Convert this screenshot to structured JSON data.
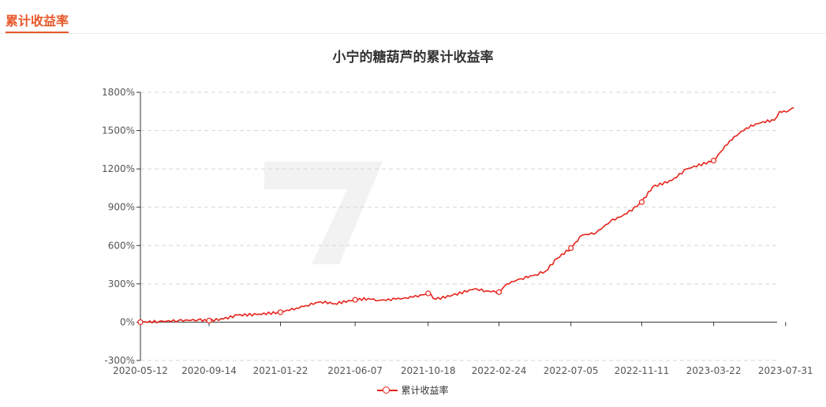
{
  "tab": {
    "title": "累计收益率"
  },
  "colors": {
    "accent": "#e8582a",
    "series": "#e6241b",
    "grid": "#d6d6d6"
  },
  "chart_data": {
    "type": "line",
    "title": "小宁的糖葫芦的累计收益率",
    "xlabel": "",
    "ylabel": "",
    "ylim": [
      -300,
      1800
    ],
    "yticks": [
      -300,
      0,
      300,
      600,
      900,
      1200,
      1500,
      1800
    ],
    "y_unit": "%",
    "x_ticks": [
      "2020-05-12",
      "2020-09-14",
      "2021-01-22",
      "2021-06-07",
      "2021-10-18",
      "2022-02-24",
      "2022-07-05",
      "2022-11-11",
      "2023-03-22",
      "2023-07-31"
    ],
    "grid": "horizontal dashed",
    "legend_position": "bottom",
    "series": [
      {
        "name": "累计收益率",
        "points": [
          [
            "2020-05-12",
            0
          ],
          [
            "2020-06-15",
            5
          ],
          [
            "2020-07-20",
            12
          ],
          [
            "2020-08-25",
            18
          ],
          [
            "2020-09-14",
            12
          ],
          [
            "2020-10-10",
            25
          ],
          [
            "2020-11-05",
            55
          ],
          [
            "2020-12-10",
            60
          ],
          [
            "2021-01-22",
            78
          ],
          [
            "2021-02-20",
            110
          ],
          [
            "2021-03-10",
            130
          ],
          [
            "2021-04-05",
            160
          ],
          [
            "2021-05-01",
            145
          ],
          [
            "2021-06-07",
            175
          ],
          [
            "2021-07-01",
            185
          ],
          [
            "2021-07-20",
            170
          ],
          [
            "2021-08-20",
            180
          ],
          [
            "2021-09-20",
            195
          ],
          [
            "2021-10-18",
            225
          ],
          [
            "2021-11-01",
            180
          ],
          [
            "2021-12-01",
            210
          ],
          [
            "2022-01-10",
            260
          ],
          [
            "2022-02-01",
            245
          ],
          [
            "2022-02-24",
            235
          ],
          [
            "2022-03-10",
            300
          ],
          [
            "2022-04-05",
            340
          ],
          [
            "2022-05-01",
            370
          ],
          [
            "2022-05-20",
            400
          ],
          [
            "2022-06-10",
            500
          ],
          [
            "2022-07-05",
            580
          ],
          [
            "2022-07-25",
            680
          ],
          [
            "2022-08-20",
            700
          ],
          [
            "2022-09-15",
            790
          ],
          [
            "2022-10-15",
            850
          ],
          [
            "2022-11-11",
            940
          ],
          [
            "2022-12-01",
            1060
          ],
          [
            "2023-01-05",
            1110
          ],
          [
            "2023-02-01",
            1200
          ],
          [
            "2023-03-22",
            1265
          ],
          [
            "2023-04-20",
            1420
          ],
          [
            "2023-05-20",
            1520
          ],
          [
            "2023-06-20",
            1570
          ],
          [
            "2023-07-10",
            1580
          ],
          [
            "2023-07-20",
            1650
          ],
          [
            "2023-08-01",
            1645
          ],
          [
            "2023-08-15",
            1680
          ]
        ],
        "marked_points": [
          "2020-05-12",
          "2020-09-14",
          "2021-01-22",
          "2021-06-07",
          "2021-10-18",
          "2022-02-24",
          "2022-07-05",
          "2022-11-11",
          "2023-03-22"
        ]
      }
    ]
  }
}
